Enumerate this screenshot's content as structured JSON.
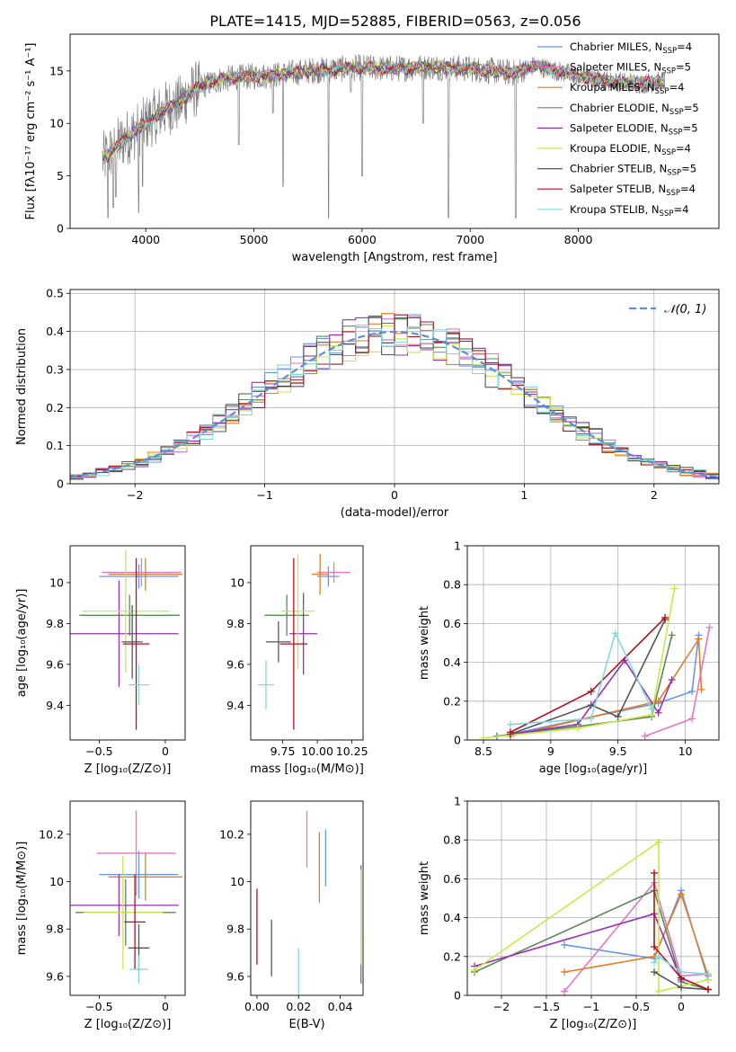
{
  "page": {
    "title": "PLATE=1415, MJD=52885, FIBERID=0563, z=0.056"
  },
  "colors": {
    "Chabrier MILES": "#6495ed",
    "Salpeter MILES": "#e377c2",
    "Kroupa MILES": "#e67e22",
    "Chabrier ELODIE": "#5a8a5a",
    "Salpeter ELODIE": "#9b30b5",
    "Kroupa ELODIE": "#c8e84a",
    "Chabrier STELIB": "#555555",
    "Salpeter STELIB": "#b01020",
    "Kroupa STELIB": "#80d8dc",
    "data": "#808080",
    "gauss": "#5b8fd6",
    "grid": "#b0b0b0"
  },
  "chart_data": [
    {
      "id": "spectrum",
      "type": "line",
      "title": "PLATE=1415, MJD=52885, FIBERID=0563, z=0.056",
      "xlabel": "wavelength [Angstrom, rest frame]",
      "ylabel": "Flux [fλ10⁻¹⁷ erg cm⁻² s⁻¹ A⁻¹]",
      "xlim": [
        3300,
        9300
      ],
      "ylim": [
        0,
        18.5
      ],
      "xticks": [
        4000,
        5000,
        6000,
        7000,
        8000
      ],
      "yticks": [
        0,
        5,
        10,
        15
      ],
      "grid": false,
      "legend_position": "right",
      "continuum": [
        [
          3600,
          6.5
        ],
        [
          3700,
          7.5
        ],
        [
          3800,
          8.5
        ],
        [
          3900,
          9.2
        ],
        [
          4000,
          10.0
        ],
        [
          4100,
          10.8
        ],
        [
          4200,
          11.5
        ],
        [
          4300,
          11.8
        ],
        [
          4400,
          12.8
        ],
        [
          4500,
          13.5
        ],
        [
          4700,
          14.2
        ],
        [
          5000,
          14.5
        ],
        [
          5200,
          14.6
        ],
        [
          5500,
          15.0
        ],
        [
          5800,
          15.2
        ],
        [
          6000,
          15.3
        ],
        [
          6300,
          15.2
        ],
        [
          6600,
          15.4
        ],
        [
          7000,
          15.2
        ],
        [
          7200,
          15.0
        ],
        [
          7400,
          14.8
        ],
        [
          7600,
          15.5
        ],
        [
          7800,
          15.0
        ],
        [
          8000,
          14.5
        ],
        [
          8300,
          14.0
        ],
        [
          8600,
          13.8
        ],
        [
          8800,
          14.0
        ]
      ],
      "absorption_lines": [
        [
          3650,
          0.0
        ],
        [
          3700,
          1.0
        ],
        [
          3725,
          2.0
        ],
        [
          3934,
          0.5
        ],
        [
          3970,
          3.0
        ],
        [
          4102,
          8.0
        ],
        [
          4861,
          7.0
        ],
        [
          5177,
          10.0
        ],
        [
          5270,
          3.0
        ],
        [
          5690,
          0.0
        ],
        [
          5895,
          12.0
        ],
        [
          6000,
          4.0
        ],
        [
          6563,
          9.0
        ],
        [
          6800,
          0.0
        ],
        [
          7420,
          0.0
        ]
      ],
      "series": [
        {
          "name": "Chabrier MILES, N_SSP=4"
        },
        {
          "name": "Salpeter MILES, N_SSP=5"
        },
        {
          "name": "Kroupa MILES, N_SSP=4"
        },
        {
          "name": "Chabrier ELODIE, N_SSP=5"
        },
        {
          "name": "Salpeter ELODIE, N_SSP=5"
        },
        {
          "name": "Kroupa ELODIE, N_SSP=4"
        },
        {
          "name": "Chabrier STELIB, N_SSP=5"
        },
        {
          "name": "Salpeter STELIB, N_SSP=4"
        },
        {
          "name": "Kroupa STELIB, N_SSP=4"
        }
      ],
      "legend_labels": [
        [
          "Chabrier MILES, N",
          "SSP",
          "=4"
        ],
        [
          "Salpeter MILES, N",
          "SSP",
          "=5"
        ],
        [
          "Kroupa MILES, N",
          "SSP",
          "=4"
        ],
        [
          "Chabrier ELODIE, N",
          "SSP",
          "=5"
        ],
        [
          "Salpeter ELODIE, N",
          "SSP",
          "=5"
        ],
        [
          "Kroupa ELODIE, N",
          "SSP",
          "=4"
        ],
        [
          "Chabrier STELIB, N",
          "SSP",
          "=5"
        ],
        [
          "Salpeter STELIB, N",
          "SSP",
          "=4"
        ],
        [
          "Kroupa STELIB, N",
          "SSP",
          "=4"
        ]
      ]
    },
    {
      "id": "residuals",
      "type": "step",
      "xlabel": "(data-model)/error",
      "ylabel": "Normed distribution",
      "xlim": [
        -2.5,
        2.5
      ],
      "ylim": [
        0,
        0.51
      ],
      "xticks": [
        -2,
        -1,
        0,
        1,
        2
      ],
      "yticks": [
        0.0,
        0.1,
        0.2,
        0.3,
        0.4,
        0.5
      ],
      "grid": true,
      "bin_width": 0.1,
      "legend": "𝒩(0, 1)",
      "legend_position": "top-right"
    },
    {
      "id": "age-vs-Z",
      "type": "errorbar",
      "xlabel": "Z [log₁₀(Z/Z⊙)]",
      "ylabel": "age  [log₁₀(age/yr)]",
      "xlim": [
        -0.72,
        0.15
      ],
      "ylim": [
        9.23,
        10.18
      ],
      "xticks": [
        -0.5,
        0.0
      ],
      "yticks": [
        9.4,
        9.6,
        9.8,
        10.0
      ],
      "points": [
        {
          "model": "Chabrier MILES",
          "x": -0.2,
          "xerr": 0.3,
          "y": 10.03,
          "yerr": 0.06
        },
        {
          "model": "Salpeter MILES",
          "x": -0.18,
          "xerr": 0.3,
          "y": 10.05,
          "yerr": 0.07
        },
        {
          "model": "Kroupa MILES",
          "x": -0.15,
          "xerr": 0.28,
          "y": 10.04,
          "yerr": 0.08
        },
        {
          "model": "Chabrier ELODIE",
          "x": -0.27,
          "xerr": 0.38,
          "y": 9.84,
          "yerr": 0.1
        },
        {
          "model": "Salpeter ELODIE",
          "x": -0.35,
          "xerr": 0.45,
          "y": 9.75,
          "yerr": 0.26
        },
        {
          "model": "Kroupa ELODIE",
          "x": -0.3,
          "xerr": 0.33,
          "y": 9.86,
          "yerr": 0.3
        },
        {
          "model": "Chabrier STELIB",
          "x": -0.25,
          "xerr": 0.08,
          "y": 9.71,
          "yerr": 0.18
        },
        {
          "model": "Salpeter STELIB",
          "x": -0.22,
          "xerr": 0.1,
          "y": 9.7,
          "yerr": 0.42
        },
        {
          "model": "Kroupa STELIB",
          "x": -0.2,
          "xerr": 0.08,
          "y": 9.5,
          "yerr": 0.1
        }
      ]
    },
    {
      "id": "age-vs-mass",
      "type": "errorbar",
      "xlabel": "mass [log₁₀(M/M⊙)]",
      "ylabel": "",
      "xlim": [
        9.52,
        10.33
      ],
      "ylim": [
        9.23,
        10.18
      ],
      "xticks": [
        9.75,
        10.0,
        10.25
      ],
      "xticklabels": [
        "9.75",
        "10.00",
        "10.25"
      ],
      "yticks": [
        9.4,
        9.6,
        9.8,
        10.0
      ],
      "points": [
        {
          "model": "Chabrier MILES",
          "x": 10.08,
          "xerr": 0.08,
          "y": 10.03,
          "yerr": 0.05
        },
        {
          "model": "Salpeter MILES",
          "x": 10.12,
          "xerr": 0.12,
          "y": 10.05,
          "yerr": 0.05
        },
        {
          "model": "Kroupa MILES",
          "x": 10.02,
          "xerr": 0.06,
          "y": 10.04,
          "yerr": 0.1
        },
        {
          "model": "Chabrier ELODIE",
          "x": 9.78,
          "xerr": 0.16,
          "y": 9.84,
          "yerr": 0.1
        },
        {
          "model": "Salpeter ELODIE",
          "x": 9.9,
          "xerr": 0.1,
          "y": 9.75,
          "yerr": 0.2
        },
        {
          "model": "Kroupa ELODIE",
          "x": 9.86,
          "xerr": 0.12,
          "y": 9.86,
          "yerr": 0.28
        },
        {
          "model": "Chabrier STELIB",
          "x": 9.72,
          "xerr": 0.09,
          "y": 9.71,
          "yerr": 0.1
        },
        {
          "model": "Salpeter STELIB",
          "x": 9.83,
          "xerr": 0.1,
          "y": 9.7,
          "yerr": 0.42
        },
        {
          "model": "Kroupa STELIB",
          "x": 9.63,
          "xerr": 0.06,
          "y": 9.5,
          "yerr": 0.12
        }
      ]
    },
    {
      "id": "weight-vs-age",
      "type": "line",
      "xlabel": "age  [log₁₀(age/yr)]",
      "ylabel": "mass weight",
      "xlim": [
        8.38,
        10.25
      ],
      "ylim": [
        0,
        1.0
      ],
      "xticks": [
        8.5,
        9.0,
        9.5,
        10.0
      ],
      "yticks": [
        0.0,
        0.2,
        0.4,
        0.6,
        0.8,
        1.0
      ],
      "grid": true,
      "series": [
        {
          "model": "Chabrier MILES",
          "x": [
            8.7,
            9.8,
            10.05,
            10.1
          ],
          "y": [
            0.03,
            0.19,
            0.25,
            0.54
          ]
        },
        {
          "model": "Salpeter MILES",
          "x": [
            9.7,
            10.05,
            10.18
          ],
          "y": [
            0.02,
            0.11,
            0.58
          ]
        },
        {
          "model": "Kroupa MILES",
          "x": [
            8.7,
            9.8,
            10.1,
            10.12
          ],
          "y": [
            0.02,
            0.2,
            0.52,
            0.26
          ]
        },
        {
          "model": "Chabrier ELODIE",
          "x": [
            8.6,
            9.2,
            9.75,
            9.9
          ],
          "y": [
            0.02,
            0.07,
            0.12,
            0.54
          ]
        },
        {
          "model": "Salpeter ELODIE",
          "x": [
            8.7,
            9.2,
            9.55,
            9.8,
            9.9
          ],
          "y": [
            0.03,
            0.08,
            0.41,
            0.14,
            0.31
          ]
        },
        {
          "model": "Kroupa ELODIE",
          "x": [
            8.5,
            9.2,
            9.75,
            9.92
          ],
          "y": [
            0.01,
            0.06,
            0.13,
            0.78
          ]
        },
        {
          "model": "Chabrier STELIB",
          "x": [
            8.7,
            9.3,
            9.5,
            9.85
          ],
          "y": [
            0.03,
            0.18,
            0.12,
            0.62
          ]
        },
        {
          "model": "Salpeter STELIB",
          "x": [
            8.7,
            9.3,
            9.85
          ],
          "y": [
            0.04,
            0.25,
            0.63
          ]
        },
        {
          "model": "Kroupa STELIB",
          "x": [
            8.7,
            9.3,
            9.48,
            9.75
          ],
          "y": [
            0.08,
            0.11,
            0.55,
            0.16
          ]
        }
      ]
    },
    {
      "id": "mass-vs-Z",
      "type": "errorbar",
      "xlabel": "Z [log₁₀(Z/Z⊙)]",
      "ylabel": "mass [log₁₀(M/M⊙)]",
      "xlim": [
        -0.72,
        0.15
      ],
      "ylim": [
        9.52,
        10.34
      ],
      "xticks": [
        -0.5,
        0.0
      ],
      "yticks": [
        9.6,
        9.8,
        10.0,
        10.2
      ],
      "points": [
        {
          "model": "Chabrier MILES",
          "x": -0.2,
          "xerr": 0.3,
          "y": 10.03,
          "yerr": 0.1
        },
        {
          "model": "Salpeter MILES",
          "x": -0.22,
          "xerr": 0.3,
          "y": 10.12,
          "yerr": 0.18
        },
        {
          "model": "Kroupa MILES",
          "x": -0.15,
          "xerr": 0.28,
          "y": 10.02,
          "yerr": 0.1
        },
        {
          "model": "Chabrier ELODIE",
          "x": -0.3,
          "xerr": 0.38,
          "y": 9.87,
          "yerr": 0.14
        },
        {
          "model": "Salpeter ELODIE",
          "x": -0.35,
          "xerr": 0.45,
          "y": 9.9,
          "yerr": 0.13
        },
        {
          "model": "Kroupa ELODIE",
          "x": -0.32,
          "xerr": 0.3,
          "y": 9.87,
          "yerr": 0.24
        },
        {
          "model": "Chabrier STELIB",
          "x": -0.2,
          "xerr": 0.08,
          "y": 9.72,
          "yerr": 0.1
        },
        {
          "model": "Salpeter STELIB",
          "x": -0.23,
          "xerr": 0.08,
          "y": 9.83,
          "yerr": 0.2
        },
        {
          "model": "Kroupa STELIB",
          "x": -0.2,
          "xerr": 0.07,
          "y": 9.63,
          "yerr": 0.06
        }
      ]
    },
    {
      "id": "mass-vs-EBV",
      "type": "errorbar",
      "xlabel": "E(B-V)",
      "ylabel": "",
      "xlim": [
        -0.003,
        0.051
      ],
      "ylim": [
        9.52,
        10.34
      ],
      "xticks": [
        0.0,
        0.02,
        0.04
      ],
      "xticklabels": [
        "0.00",
        "0.02",
        "0.04"
      ],
      "yticks": [
        9.6,
        9.8,
        10.0,
        10.2
      ],
      "points": [
        {
          "model": "Chabrier MILES",
          "x": 0.033,
          "xerr": 0,
          "y": 10.1,
          "yerr": 0.12
        },
        {
          "model": "Salpeter MILES",
          "x": 0.024,
          "xerr": 0,
          "y": 10.18,
          "yerr": 0.12
        },
        {
          "model": "Kroupa MILES",
          "x": 0.03,
          "xerr": 0,
          "y": 10.06,
          "yerr": 0.15
        },
        {
          "model": "Chabrier ELODIE",
          "x": 0.05,
          "xerr": 0,
          "y": 9.82,
          "yerr": 0.25
        },
        {
          "model": "Salpeter ELODIE",
          "x": 0.05,
          "xerr": 0,
          "y": 9.9,
          "yerr": 0.13
        },
        {
          "model": "Kroupa ELODIE",
          "x": 0.05,
          "xerr": 0,
          "y": 9.85,
          "yerr": 0.2
        },
        {
          "model": "Chabrier STELIB",
          "x": 0.007,
          "xerr": 0,
          "y": 9.72,
          "yerr": 0.12
        },
        {
          "model": "Salpeter STELIB",
          "x": 0.0,
          "xerr": 0,
          "y": 9.81,
          "yerr": 0.16
        },
        {
          "model": "Kroupa STELIB",
          "x": 0.02,
          "xerr": 0,
          "y": 9.62,
          "yerr": 0.1
        }
      ]
    },
    {
      "id": "weight-vs-Z",
      "type": "line",
      "xlabel": "Z [log₁₀(Z/Z⊙)]",
      "ylabel": "mass weight",
      "xlim": [
        -2.38,
        0.42
      ],
      "ylim": [
        0,
        1.0
      ],
      "xticks": [
        -2.0,
        -1.5,
        -1.0,
        -0.5,
        0.0
      ],
      "yticks": [
        0.0,
        0.2,
        0.4,
        0.6,
        0.8,
        1.0
      ],
      "grid": true,
      "series": [
        {
          "model": "Chabrier MILES",
          "x": [
            -1.3,
            -0.3,
            0.0,
            0.3
          ],
          "y": [
            0.26,
            0.19,
            0.54,
            0.08
          ]
        },
        {
          "model": "Salpeter MILES",
          "x": [
            -1.3,
            -0.3,
            0.0,
            0.3
          ],
          "y": [
            0.02,
            0.58,
            0.1,
            0.11
          ]
        },
        {
          "model": "Kroupa MILES",
          "x": [
            -1.3,
            -0.3,
            0.0,
            0.3
          ],
          "y": [
            0.12,
            0.2,
            0.52,
            0.1
          ]
        },
        {
          "model": "Chabrier ELODIE",
          "x": [
            -2.3,
            -0.3,
            0.0,
            0.3
          ],
          "y": [
            0.12,
            0.54,
            0.07,
            0.03
          ]
        },
        {
          "model": "Salpeter ELODIE",
          "x": [
            -2.3,
            -0.3,
            0.0
          ],
          "y": [
            0.15,
            0.42,
            0.08
          ]
        },
        {
          "model": "Kroupa ELODIE",
          "x": [
            -2.3,
            -0.25,
            -0.25,
            0.3
          ],
          "y": [
            0.13,
            0.79,
            0.02,
            0.08
          ]
        },
        {
          "model": "Chabrier STELIB",
          "x": [
            -0.3,
            0.0,
            0.3
          ],
          "y": [
            0.12,
            0.04,
            0.03
          ]
        },
        {
          "model": "Salpeter STELIB",
          "x": [
            -0.3,
            -0.3,
            0.0,
            0.3
          ],
          "y": [
            0.63,
            0.25,
            0.09,
            0.03
          ]
        },
        {
          "model": "Kroupa STELIB",
          "x": [
            -0.3,
            -0.25,
            0.0,
            0.3
          ],
          "y": [
            0.17,
            0.2,
            0.12,
            0.11
          ]
        }
      ]
    }
  ]
}
